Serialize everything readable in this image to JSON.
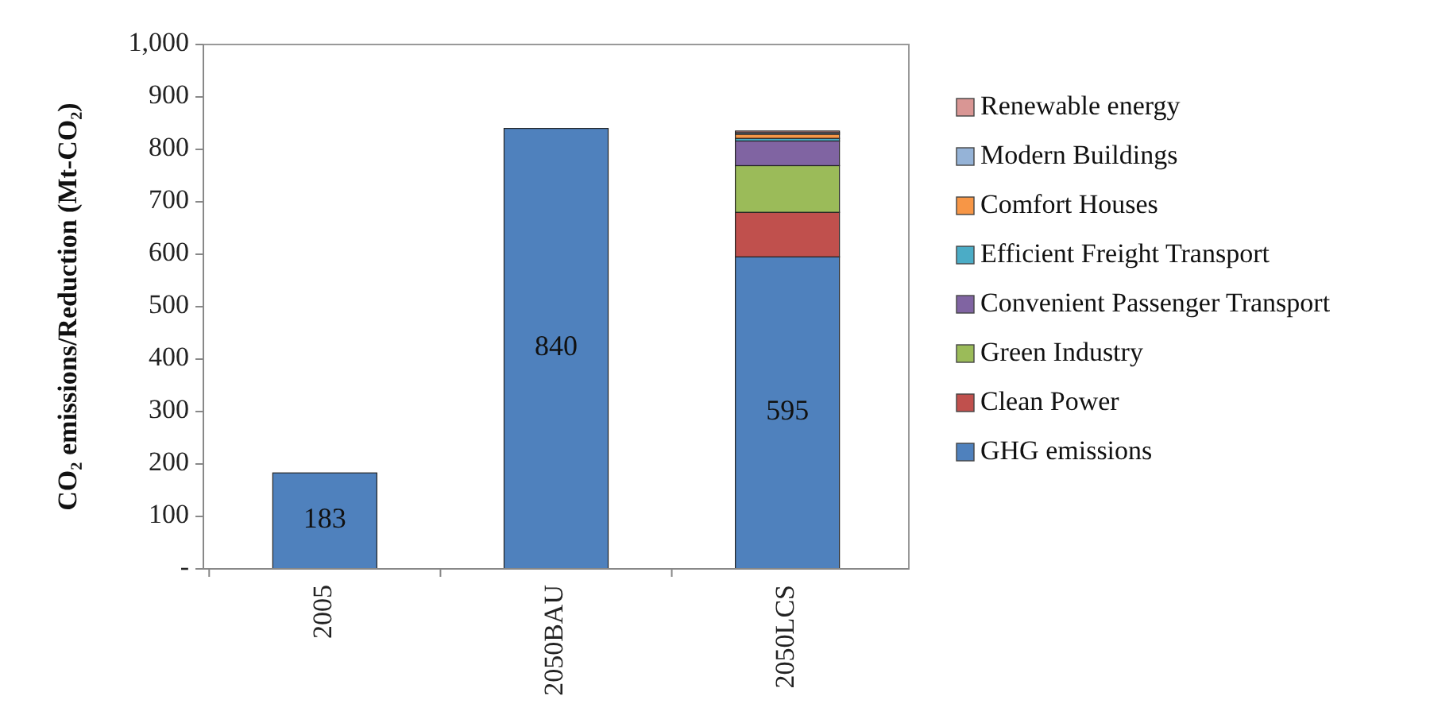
{
  "chart_data": {
    "type": "bar",
    "stacked": true,
    "ylabel": "CO₂ emissions/Reduction (Mt-CO₂)",
    "categories": [
      "2005",
      "2050BAU",
      "2050LCS"
    ],
    "ylim": [
      0,
      1000
    ],
    "yticks": [
      {
        "value": 0,
        "label": "-"
      },
      100,
      200,
      300,
      400,
      500,
      600,
      700,
      800,
      900,
      {
        "value": 1000,
        "label": "1,000"
      }
    ],
    "grid": false,
    "legend": "right",
    "series": [
      {
        "name": "GHG emissions",
        "color": "#4f81bd",
        "values": [
          183,
          840,
          595
        ],
        "value_labels": [
          "183",
          "840",
          "595"
        ]
      },
      {
        "name": "Clean Power",
        "color": "#c0504d",
        "values": [
          null,
          null,
          85
        ]
      },
      {
        "name": "Green Industry",
        "color": "#9bbb59",
        "values": [
          null,
          null,
          89
        ]
      },
      {
        "name": "Convenient Passenger Transport",
        "color": "#8064a2",
        "values": [
          null,
          null,
          47
        ]
      },
      {
        "name": "Efficient Freight Transport",
        "color": "#4bacc6",
        "values": [
          null,
          null,
          5
        ]
      },
      {
        "name": "Comfort Houses",
        "color": "#f79646",
        "values": [
          null,
          null,
          8
        ]
      },
      {
        "name": "Modern Buildings",
        "color": "#95b3d7",
        "values": [
          null,
          null,
          3
        ]
      },
      {
        "name": "Renewable energy",
        "color": "#d99694",
        "values": [
          null,
          null,
          3
        ]
      }
    ]
  }
}
